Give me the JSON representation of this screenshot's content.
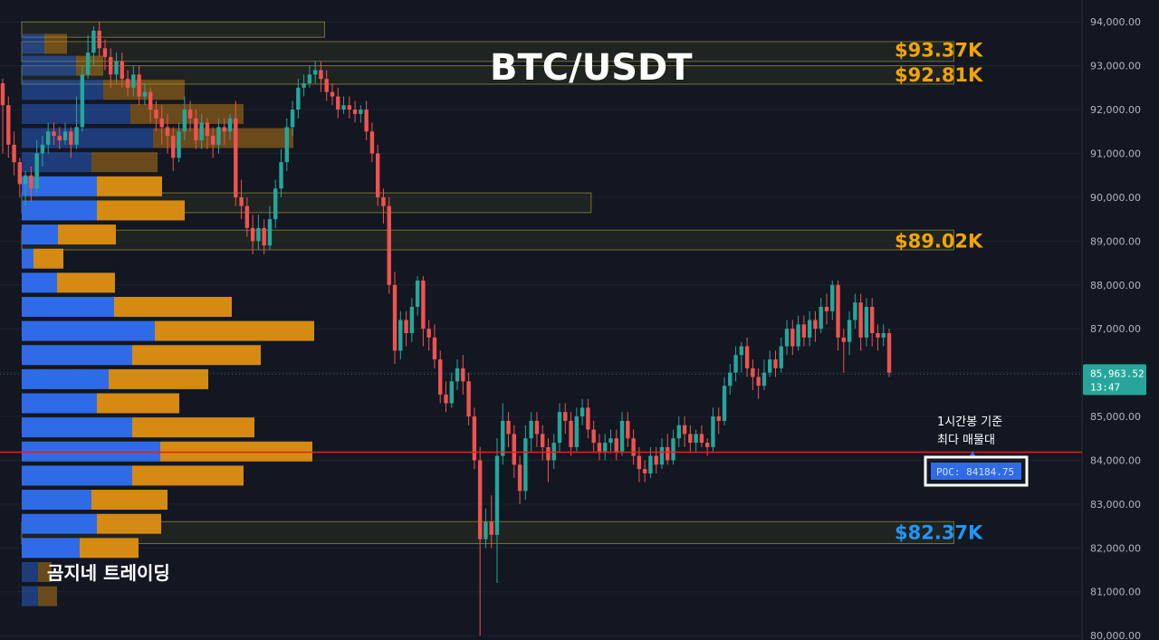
{
  "chart_data": {
    "type": "candlestick",
    "title": "BTC/USDT",
    "timeframe_note": "1시간봉 기준\n최다 매물대",
    "watermark": "곰지네 트레이딩",
    "ylim": [
      79900,
      94500
    ],
    "y_ticks": [
      "94,000.00",
      "93,000.00",
      "92,000.00",
      "91,000.00",
      "90,000.00",
      "89,000.00",
      "88,000.00",
      "87,000.00",
      "86,000.00",
      "85,000.00",
      "84,000.00",
      "83,000.00",
      "82,000.00",
      "81,000.00",
      "80,000.00"
    ],
    "y_tick_values": [
      94000,
      93000,
      92000,
      91000,
      90000,
      89000,
      88000,
      87000,
      86000,
      85000,
      84000,
      83000,
      82000,
      81000,
      80000
    ],
    "last_price": {
      "label": "85,963.52",
      "countdown": "13:47",
      "value": 85963.52
    },
    "poc": {
      "label": "POC: 84184.75",
      "value": 84184.75
    },
    "levels": [
      {
        "label": "$93.37K",
        "value": 93370,
        "color": "#f0a500"
      },
      {
        "label": "$92.81K",
        "value": 92810,
        "color": "#f0a500"
      },
      {
        "label": "$89.02K",
        "value": 89020,
        "color": "#f0a500"
      },
      {
        "label": "$82.37K",
        "value": 82370,
        "color": "#2196f3"
      }
    ],
    "zones": [
      {
        "top": 94000,
        "bottom": 93650,
        "x_end_frac": 0.28
      },
      {
        "top": 93550,
        "bottom": 93100,
        "x_end_frac": 0.823
      },
      {
        "top": 93000,
        "bottom": 92580,
        "x_end_frac": 0.823
      },
      {
        "top": 90100,
        "bottom": 89650,
        "x_end_frac": 0.51
      },
      {
        "top": 89250,
        "bottom": 88800,
        "x_end_frac": 0.823
      },
      {
        "top": 82600,
        "bottom": 82100,
        "x_end_frac": 0.823
      }
    ],
    "volume_profile": [
      {
        "price": 93500,
        "buy": 25,
        "sell": 25,
        "dim": true
      },
      {
        "price": 93000,
        "buy": 60,
        "sell": 30,
        "dim": true
      },
      {
        "price": 92450,
        "buy": 90,
        "sell": 90,
        "dim": true
      },
      {
        "price": 91900,
        "buy": 120,
        "sell": 125,
        "dim": true
      },
      {
        "price": 91350,
        "buy": 145,
        "sell": 155,
        "dim": true
      },
      {
        "price": 90800,
        "buy": 77,
        "sell": 73,
        "dim": true
      },
      {
        "price": 90250,
        "buy": 83,
        "sell": 72,
        "dim": false
      },
      {
        "price": 89700,
        "buy": 83,
        "sell": 97,
        "dim": false
      },
      {
        "price": 89150,
        "buy": 40,
        "sell": 64,
        "dim": false
      },
      {
        "price": 88600,
        "buy": 13,
        "sell": 33,
        "dim": false
      },
      {
        "price": 88050,
        "buy": 39,
        "sell": 64,
        "dim": false
      },
      {
        "price": 87500,
        "buy": 102,
        "sell": 130,
        "dim": false
      },
      {
        "price": 86950,
        "buy": 147,
        "sell": 176,
        "dim": false
      },
      {
        "price": 86400,
        "buy": 122,
        "sell": 142,
        "dim": false
      },
      {
        "price": 85850,
        "buy": 96,
        "sell": 110,
        "dim": false
      },
      {
        "price": 85300,
        "buy": 83,
        "sell": 91,
        "dim": false
      },
      {
        "price": 84750,
        "buy": 122,
        "sell": 135,
        "dim": false
      },
      {
        "price": 84200,
        "buy": 153,
        "sell": 168,
        "dim": false
      },
      {
        "price": 83650,
        "buy": 122,
        "sell": 123,
        "dim": false
      },
      {
        "price": 83100,
        "buy": 77,
        "sell": 84,
        "dim": false
      },
      {
        "price": 82550,
        "buy": 83,
        "sell": 71,
        "dim": false
      },
      {
        "price": 82000,
        "buy": 64,
        "sell": 65,
        "dim": false
      },
      {
        "price": 81450,
        "buy": 18,
        "sell": 15,
        "dim": true
      },
      {
        "price": 80900,
        "buy": 18,
        "sell": 21,
        "dim": true
      }
    ],
    "candles": [
      [
        92600,
        92100,
        92700,
        91000
      ],
      [
        92100,
        91200,
        92300,
        90900
      ],
      [
        91200,
        90800,
        91500,
        90500
      ],
      [
        90800,
        90300,
        90900,
        90000
      ],
      [
        90300,
        90500,
        90600,
        89800
      ],
      [
        90500,
        90200,
        90700,
        89900
      ],
      [
        90200,
        91000,
        91300,
        90100
      ],
      [
        91000,
        91200,
        91400,
        90700
      ],
      [
        91200,
        91500,
        91700,
        91000
      ],
      [
        91500,
        91400,
        91700,
        91200
      ],
      [
        91400,
        91300,
        91600,
        91100
      ],
      [
        91300,
        91500,
        91700,
        91200
      ],
      [
        91500,
        91200,
        91600,
        90900
      ],
      [
        91200,
        91600,
        92300,
        91100
      ],
      [
        91600,
        92800,
        93000,
        91500
      ],
      [
        92800,
        93300,
        93700,
        92700
      ],
      [
        93300,
        93800,
        93900,
        93000
      ],
      [
        93800,
        93400,
        94000,
        93200
      ],
      [
        93400,
        93200,
        93600,
        92900
      ],
      [
        93200,
        92800,
        93400,
        92500
      ],
      [
        92800,
        93100,
        93300,
        92600
      ],
      [
        93100,
        92700,
        93300,
        92500
      ],
      [
        92700,
        92500,
        92900,
        92300
      ],
      [
        92500,
        92800,
        93000,
        92300
      ],
      [
        92800,
        92300,
        93000,
        92100
      ],
      [
        92300,
        92400,
        92600,
        92100
      ],
      [
        92400,
        92000,
        92500,
        91700
      ],
      [
        92000,
        91800,
        92200,
        91500
      ],
      [
        91800,
        91600,
        92100,
        91200
      ],
      [
        91600,
        91400,
        91900,
        91000
      ],
      [
        91400,
        90900,
        91600,
        90600
      ],
      [
        90900,
        91500,
        91700,
        90800
      ],
      [
        91500,
        92000,
        92300,
        91300
      ],
      [
        92000,
        91800,
        92200,
        91500
      ],
      [
        91800,
        91300,
        92000,
        91100
      ],
      [
        91300,
        91700,
        91900,
        91100
      ],
      [
        91700,
        91400,
        91800,
        91100
      ],
      [
        91400,
        91200,
        91600,
        90900
      ],
      [
        91200,
        91600,
        91800,
        91000
      ],
      [
        91600,
        91500,
        91800,
        91200
      ],
      [
        91500,
        91800,
        91900,
        91300
      ],
      [
        91800,
        90000,
        92200,
        89800
      ],
      [
        90000,
        89800,
        90400,
        89500
      ],
      [
        89800,
        89300,
        90000,
        89100
      ],
      [
        89300,
        89000,
        89600,
        88700
      ],
      [
        89000,
        89300,
        89600,
        88800
      ],
      [
        89300,
        88900,
        89500,
        88700
      ],
      [
        88900,
        89500,
        89800,
        88800
      ],
      [
        89500,
        90200,
        90400,
        89300
      ],
      [
        90200,
        90800,
        91100,
        90000
      ],
      [
        90800,
        91600,
        91800,
        90600
      ],
      [
        91600,
        92000,
        92200,
        91400
      ],
      [
        92000,
        92500,
        92700,
        91800
      ],
      [
        92500,
        92600,
        92800,
        92300
      ],
      [
        92600,
        92800,
        93000,
        92500
      ],
      [
        92800,
        92900,
        93100,
        92600
      ],
      [
        92900,
        92700,
        93100,
        92400
      ],
      [
        92700,
        92400,
        92900,
        92200
      ],
      [
        92400,
        92300,
        92600,
        92100
      ],
      [
        92300,
        92000,
        92500,
        91800
      ],
      [
        92000,
        92100,
        92300,
        91900
      ],
      [
        92100,
        92000,
        92300,
        91800
      ],
      [
        92000,
        91900,
        92200,
        91700
      ],
      [
        91900,
        92000,
        92100,
        91700
      ],
      [
        92000,
        91500,
        92200,
        91300
      ],
      [
        91500,
        91000,
        91700,
        90800
      ],
      [
        91000,
        90000,
        91200,
        89800
      ],
      [
        90000,
        89800,
        90200,
        89400
      ],
      [
        89800,
        88000,
        90000,
        87800
      ],
      [
        88000,
        86500,
        88300,
        86200
      ],
      [
        86500,
        87200,
        87400,
        86300
      ],
      [
        87200,
        86900,
        87400,
        86600
      ],
      [
        86900,
        87500,
        87700,
        86700
      ],
      [
        87500,
        88100,
        88200,
        87300
      ],
      [
        88100,
        87000,
        88200,
        86600
      ],
      [
        87000,
        86800,
        87200,
        86500
      ],
      [
        86800,
        86300,
        87100,
        86100
      ],
      [
        86300,
        85500,
        86500,
        85300
      ],
      [
        85500,
        85300,
        85800,
        85100
      ],
      [
        85300,
        85800,
        86000,
        85200
      ],
      [
        85800,
        86100,
        86300,
        85600
      ],
      [
        86100,
        85800,
        86400,
        85500
      ],
      [
        85800,
        85000,
        86000,
        84800
      ],
      [
        85000,
        84000,
        85200,
        83800
      ],
      [
        84000,
        82200,
        84300,
        80000
      ],
      [
        82200,
        82600,
        82900,
        82000
      ],
      [
        82600,
        82300,
        83200,
        82000
      ],
      [
        82300,
        84100,
        84500,
        81200
      ],
      [
        84100,
        84900,
        85300,
        83900
      ],
      [
        84900,
        84600,
        85100,
        84300
      ],
      [
        84600,
        83900,
        84800,
        83600
      ],
      [
        83900,
        83300,
        84100,
        83000
      ],
      [
        83300,
        84500,
        84800,
        83100
      ],
      [
        84500,
        84900,
        85100,
        84200
      ],
      [
        84900,
        84600,
        85100,
        84300
      ],
      [
        84600,
        84300,
        84800,
        84000
      ],
      [
        84300,
        84000,
        84500,
        83500
      ],
      [
        84000,
        84400,
        84600,
        83800
      ],
      [
        84400,
        85100,
        85300,
        84200
      ],
      [
        85100,
        84900,
        85300,
        84600
      ],
      [
        84900,
        84300,
        85100,
        84100
      ],
      [
        84300,
        85000,
        85200,
        84200
      ],
      [
        85000,
        85200,
        85400,
        84800
      ],
      [
        85200,
        84700,
        85400,
        84500
      ],
      [
        84700,
        84400,
        84900,
        84200
      ],
      [
        84400,
        84200,
        84600,
        84000
      ],
      [
        84200,
        84400,
        84600,
        84000
      ],
      [
        84400,
        84500,
        84700,
        84200
      ],
      [
        84500,
        84200,
        84700,
        84000
      ],
      [
        84200,
        84900,
        85100,
        84100
      ],
      [
        84900,
        84500,
        85100,
        84300
      ],
      [
        84500,
        84100,
        84700,
        83900
      ],
      [
        84100,
        83800,
        84300,
        83500
      ],
      [
        83800,
        83700,
        84000,
        83500
      ],
      [
        83700,
        84100,
        84300,
        83600
      ],
      [
        84100,
        83900,
        84300,
        83700
      ],
      [
        83900,
        84300,
        84500,
        83800
      ],
      [
        84300,
        84000,
        84600,
        83900
      ],
      [
        84000,
        84500,
        84700,
        83900
      ],
      [
        84500,
        84800,
        85000,
        84300
      ],
      [
        84800,
        84600,
        85000,
        84300
      ],
      [
        84600,
        84400,
        84800,
        84200
      ],
      [
        84400,
        84600,
        84700,
        84200
      ],
      [
        84600,
        84400,
        84800,
        84300
      ],
      [
        84400,
        84300,
        84500,
        84100
      ],
      [
        84300,
        85000,
        85200,
        84200
      ],
      [
        85000,
        84900,
        85200,
        84600
      ],
      [
        84900,
        85700,
        85900,
        84800
      ],
      [
        85700,
        86000,
        86200,
        85500
      ],
      [
        86000,
        86400,
        86600,
        85800
      ],
      [
        86400,
        86600,
        86700,
        86000
      ],
      [
        86600,
        86100,
        86800,
        85900
      ],
      [
        86100,
        85900,
        86300,
        85600
      ],
      [
        85900,
        85700,
        86100,
        85400
      ],
      [
        85700,
        86000,
        86300,
        85600
      ],
      [
        86000,
        86300,
        86500,
        85900
      ],
      [
        86300,
        86100,
        86500,
        85900
      ],
      [
        86100,
        86600,
        86800,
        86000
      ],
      [
        86600,
        87000,
        87200,
        86400
      ],
      [
        87000,
        86600,
        87200,
        86400
      ],
      [
        86600,
        87100,
        87300,
        86500
      ],
      [
        87100,
        86800,
        87300,
        86600
      ],
      [
        86800,
        87200,
        87400,
        86600
      ],
      [
        87200,
        87000,
        87400,
        86700
      ],
      [
        87000,
        87500,
        87700,
        86900
      ],
      [
        87500,
        87400,
        87800,
        87100
      ],
      [
        87400,
        88000,
        88100,
        87200
      ],
      [
        88000,
        86800,
        88100,
        86500
      ],
      [
        86800,
        86700,
        87000,
        86000
      ],
      [
        86700,
        87200,
        87400,
        86400
      ],
      [
        87200,
        87600,
        87800,
        87000
      ],
      [
        87600,
        86800,
        87800,
        86500
      ],
      [
        86800,
        87500,
        87700,
        86600
      ],
      [
        87500,
        86900,
        87700,
        86600
      ],
      [
        86900,
        86800,
        87100,
        86500
      ],
      [
        86800,
        86900,
        87100,
        86600
      ],
      [
        86900,
        86000,
        87000,
        85900
      ]
    ]
  }
}
